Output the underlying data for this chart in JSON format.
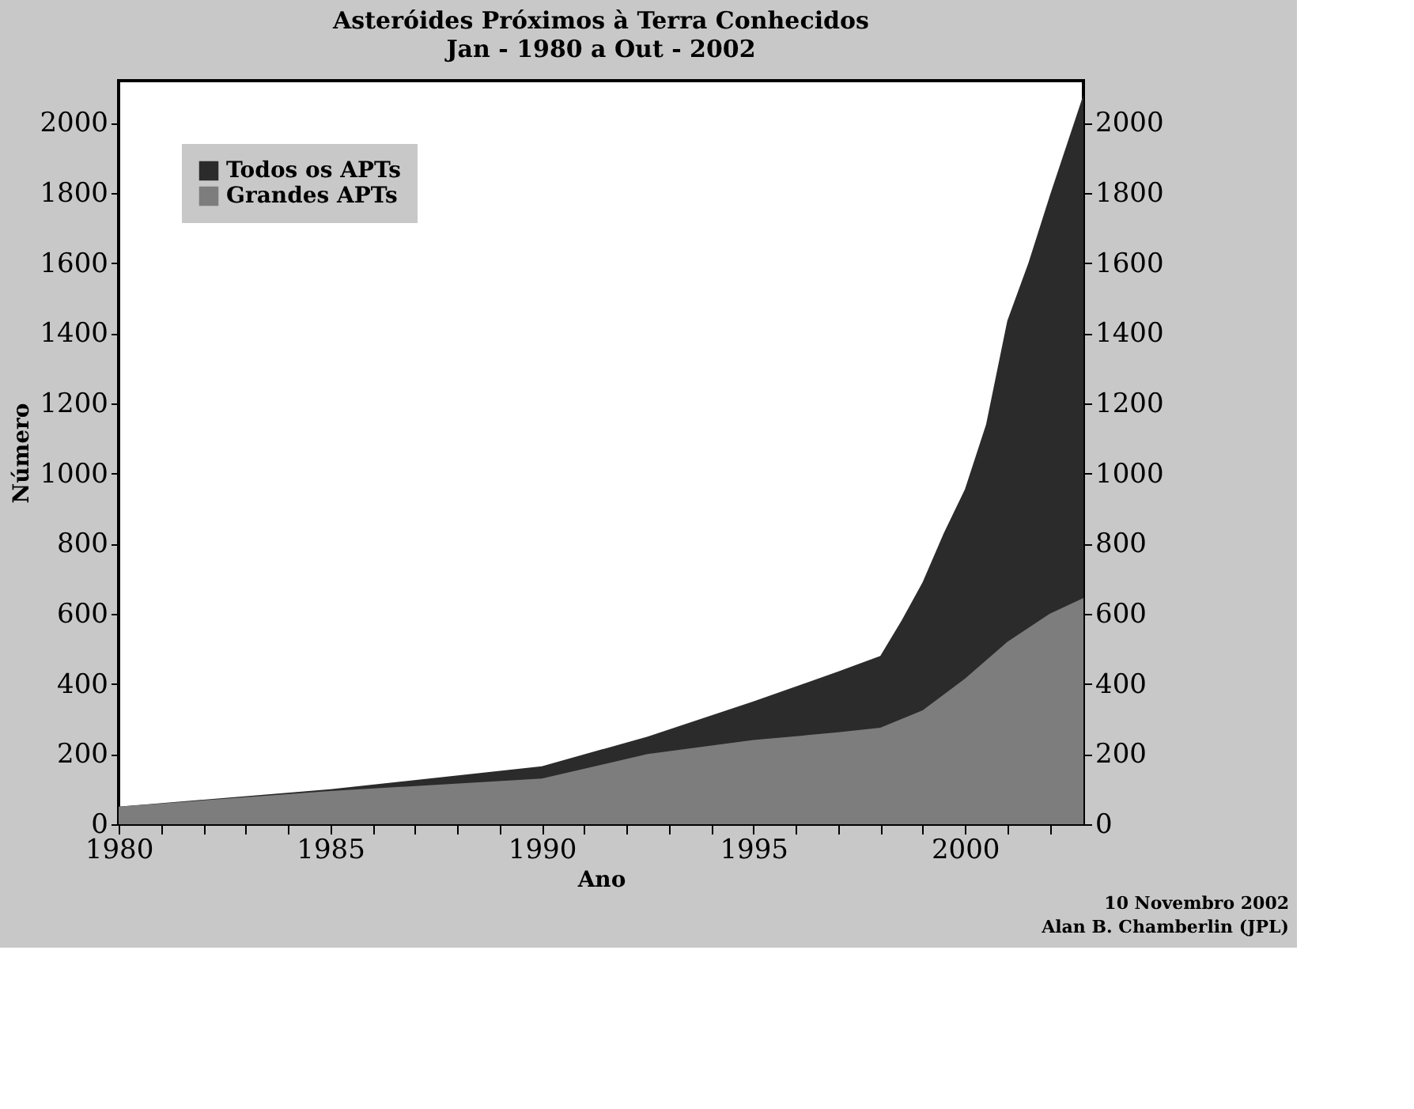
{
  "chart_data": {
    "type": "area",
    "title": "Asteróides Próximos à Terra Conhecidos",
    "subtitle": "Jan - 1980 a Out - 2002",
    "xlabel": "Ano",
    "ylabel": "Número",
    "annotations": [
      "10 Novembro 2002",
      "Alan B. Chamberlin (JPL)"
    ],
    "series": [
      {
        "name": "Todos os APTs",
        "color": "#2b2b2b",
        "x": [
          1980,
          1985,
          1990,
          1992.5,
          1995,
          1997,
          1998,
          1998.5,
          1999,
          1999.5,
          2000,
          2000.5,
          2001,
          2001.5,
          2002,
          2002.8
        ],
        "values": [
          50,
          100,
          165,
          250,
          350,
          435,
          480,
          580,
          690,
          830,
          955,
          1140,
          1435,
          1600,
          1790,
          2080
        ]
      },
      {
        "name": "Grandes APTs",
        "color": "#7d7d7d",
        "x": [
          1980,
          1985,
          1990,
          1992.5,
          1995,
          1997,
          1998,
          1999,
          2000,
          2001,
          2002,
          2002.8
        ],
        "values": [
          50,
          95,
          130,
          200,
          240,
          262,
          275,
          325,
          415,
          520,
          600,
          645
        ]
      }
    ],
    "xlim": [
      1980,
      2002.8
    ],
    "xticks": [
      1980,
      {
        "value": 1981,
        "label": null
      },
      {
        "value": 1982,
        "label": null
      },
      {
        "value": 1983,
        "label": null
      },
      {
        "value": 1984,
        "label": null
      },
      1985,
      {
        "value": 1986,
        "label": null
      },
      {
        "value": 1987,
        "label": null
      },
      {
        "value": 1988,
        "label": null
      },
      {
        "value": 1989,
        "label": null
      },
      1990,
      {
        "value": 1991,
        "label": null
      },
      {
        "value": 1992,
        "label": null
      },
      {
        "value": 1993,
        "label": null
      },
      {
        "value": 1994,
        "label": null
      },
      1995,
      {
        "value": 1996,
        "label": null
      },
      {
        "value": 1997,
        "label": null
      },
      {
        "value": 1998,
        "label": null
      },
      {
        "value": 1999,
        "label": null
      },
      2000,
      {
        "value": 2001,
        "label": null
      },
      {
        "value": 2002,
        "label": null
      }
    ],
    "ylim": [
      0,
      2120
    ],
    "yticks": [
      0,
      200,
      400,
      600,
      800,
      1000,
      1200,
      1400,
      1600,
      1800,
      2000
    ],
    "y2lim": [
      0,
      2120
    ],
    "y2ticks": [
      0,
      200,
      400,
      600,
      800,
      1000,
      1200,
      1400,
      1600,
      1800,
      2000
    ],
    "grid": false,
    "legend": "top left"
  }
}
